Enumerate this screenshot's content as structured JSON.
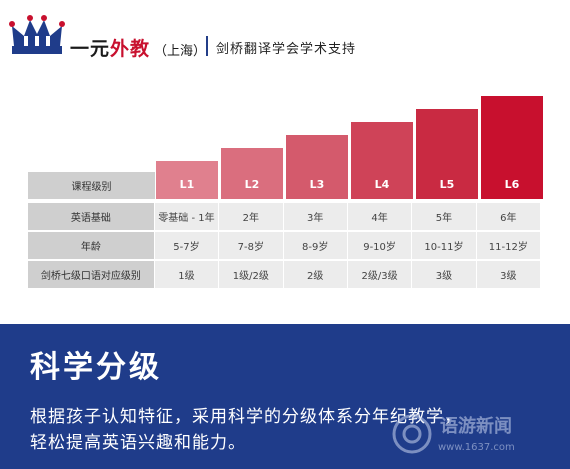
{
  "header": {
    "brand_main": "一元",
    "brand_accent": "外教",
    "brand_sub": "（上海）",
    "tagline": "剑桥翻译学会学术支持"
  },
  "chart_data": {
    "type": "bar",
    "categories": [
      "L1",
      "L2",
      "L3",
      "L4",
      "L5",
      "L6"
    ],
    "values": [
      1,
      2,
      3,
      4,
      5,
      6
    ],
    "colors": [
      "#e0808e",
      "#da6e7e",
      "#d45a6c",
      "#cf4358",
      "#c92a42",
      "#c8102e"
    ]
  },
  "table": {
    "header_label": "课程级别",
    "rows": [
      {
        "label": "英语基础",
        "cells": [
          "零基础 - 1年",
          "2年",
          "3年",
          "4年",
          "5年",
          "6年"
        ]
      },
      {
        "label": "年龄",
        "cells": [
          "5-7岁",
          "7-8岁",
          "8-9岁",
          "9-10岁",
          "10-11岁",
          "11-12岁"
        ]
      },
      {
        "label": "剑桥七级口语对应级别",
        "cells": [
          "1级",
          "1级/2级",
          "2级",
          "2级/3级",
          "3级",
          "3级"
        ]
      }
    ]
  },
  "banner": {
    "title": "科学分级",
    "line1": "根据孩子认知特征，采用科学的分级体系分年纪教学，",
    "line2": "轻松提高英语兴趣和能力。"
  },
  "watermark": {
    "text": "语游新闻",
    "url": "www.1637.com"
  }
}
